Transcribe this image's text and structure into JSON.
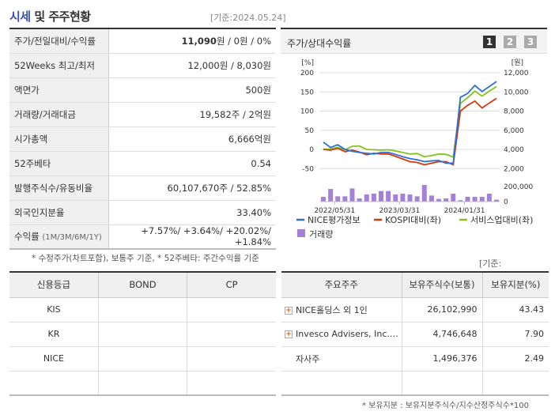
{
  "header": {
    "title_accent": "시세",
    "title_rest": " 및 주주현황",
    "as_of": "[기준:2024.05.24]"
  },
  "summary": {
    "rows": [
      {
        "label": "주가/전일대비/수익률",
        "price": "11,090",
        "value": "원 / 0원 / 0%"
      },
      {
        "label": "52Weeks 최고/최저",
        "value": "12,000원 / 8,030원"
      },
      {
        "label": "액면가",
        "value": "500원"
      },
      {
        "label": "거래량/거래대금",
        "value": "19,582주 / 2억원"
      },
      {
        "label": "시가총액",
        "value": "6,666억원"
      },
      {
        "label": "52주베타",
        "value": "0.54"
      },
      {
        "label": "발행주식수/유동비율",
        "value": "60,107,670주 / 52.85%"
      },
      {
        "label": "외국인지분율",
        "value": "33.40%"
      },
      {
        "label": "수익률",
        "label_sub": "(1M/3M/6M/1Y)",
        "value": "+7.57%/ +3.64%/ +20.02%/ +1.84%"
      }
    ],
    "footnote": "* 수정주가(차트포함), 보통주 기준, * 52주베타: 주간수익률 기준"
  },
  "chart_panel": {
    "title": "주가/상대수익률",
    "pages": [
      "1",
      "2",
      "3"
    ],
    "active_page": "1"
  },
  "chart_data": {
    "type": "line",
    "left_unit": "[%]",
    "right_unit": "[원]",
    "left_ticks": [
      "200",
      "150",
      "100",
      "50",
      "0",
      "-50"
    ],
    "ylim_left": [
      -50,
      200
    ],
    "right_ticks": [
      "12,000",
      "10,000",
      "8,000",
      "6,000",
      "4,000",
      "2,000"
    ],
    "ylim_right": [
      2000,
      12000
    ],
    "volume_ticks": [
      "200,000",
      "0"
    ],
    "ylim_volume": [
      0,
      200000
    ],
    "x_ticks": [
      "2022/05/31",
      "2023/03/31",
      "2024/01/31"
    ],
    "grid": true,
    "legend_placement": "bottom",
    "series": [
      {
        "name": "NICE평가정보",
        "color": "#2a6fdb",
        "values": [
          19,
          5,
          12,
          0,
          -5,
          -8,
          -10,
          -12,
          -8,
          -8,
          -13,
          -19,
          -24,
          -27,
          -32,
          -30,
          -29,
          -36,
          -36,
          136,
          146,
          167,
          151,
          164,
          177
        ]
      },
      {
        "name": "KOSPI대비(좌)",
        "color": "#d63a0a",
        "values": [
          0,
          -2,
          3,
          -6,
          -2,
          -7,
          -14,
          -10,
          -12,
          -12,
          -18,
          -25,
          -32,
          -34,
          -40,
          -36,
          -32,
          -32,
          -40,
          100,
          115,
          126,
          108,
          121,
          133
        ]
      },
      {
        "name": "서비스업대비(좌)",
        "color": "#86c21b",
        "values": [
          0,
          1,
          5,
          -1,
          8,
          9,
          0,
          -1,
          -2,
          -1,
          -4,
          -8,
          -12,
          -11,
          -19,
          -16,
          -12,
          -13,
          -20,
          120,
          135,
          152,
          139,
          152,
          164
        ]
      }
    ],
    "volume": {
      "name": "거래량",
      "color": "#a67fd9",
      "values": [
        63000,
        168000,
        70000,
        70000,
        175000,
        42000,
        95000,
        105000,
        140000,
        140000,
        95000,
        105000,
        95000,
        70000,
        221000,
        80000,
        35000,
        42000,
        105000,
        18000,
        63000,
        63000,
        63000,
        105000,
        25000
      ]
    }
  },
  "ratings": {
    "headers": [
      "신용등급",
      "BOND",
      "CP"
    ],
    "rows": [
      [
        "KIS",
        "",
        ""
      ],
      [
        "KR",
        "",
        ""
      ],
      [
        "NICE",
        "",
        ""
      ],
      [
        "",
        "",
        ""
      ]
    ]
  },
  "holders": {
    "as_of": "[기준: 2024.05.24]",
    "headers": [
      "주요주주",
      "보유주식수(보통)",
      "보유지분(%)"
    ],
    "rows": [
      {
        "name": "NICE홀딩스 외 1인",
        "shares": "26,102,990",
        "pct": "43.43",
        "expand": true
      },
      {
        "name": "Invesco Advisers, Inc.…",
        "shares": "4,746,648",
        "pct": "7.90",
        "expand": true
      },
      {
        "name": "자사주",
        "shares": "1,496,376",
        "pct": "2.49",
        "expand": false
      },
      {
        "name": "",
        "shares": "",
        "pct": "",
        "expand": false
      }
    ],
    "footnote": "* 보유지분 : 보유지분주식수/지수산정주식수*100"
  }
}
